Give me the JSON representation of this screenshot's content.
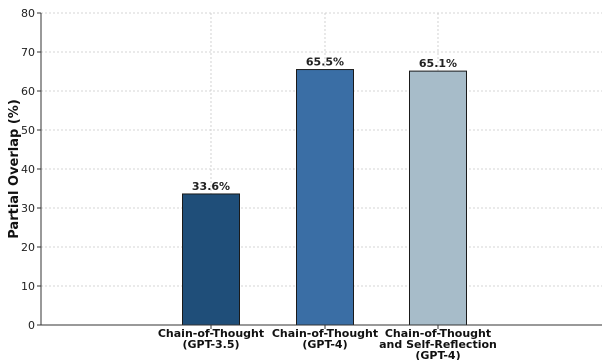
{
  "chart_data": {
    "type": "bar",
    "title": "",
    "xlabel": "",
    "ylabel": "Partial Overlap (%)",
    "ylim": [
      0,
      80
    ],
    "yticks": [
      0,
      10,
      20,
      30,
      40,
      50,
      60,
      70,
      80
    ],
    "grid": true,
    "categories": [
      [
        "Chain-of-Thought",
        "(GPT-3.5)"
      ],
      [
        "Chain-of-Thought",
        "(GPT-4)"
      ],
      [
        "Chain-of-Thought",
        "and Self-Reflection",
        "(GPT-4)"
      ]
    ],
    "values": [
      33.6,
      65.5,
      65.1
    ],
    "data_labels": [
      "33.6%",
      "65.5%",
      "65.1%"
    ],
    "colors": [
      "#1f4e79",
      "#3a6ea5",
      "#a7bcc9"
    ]
  }
}
